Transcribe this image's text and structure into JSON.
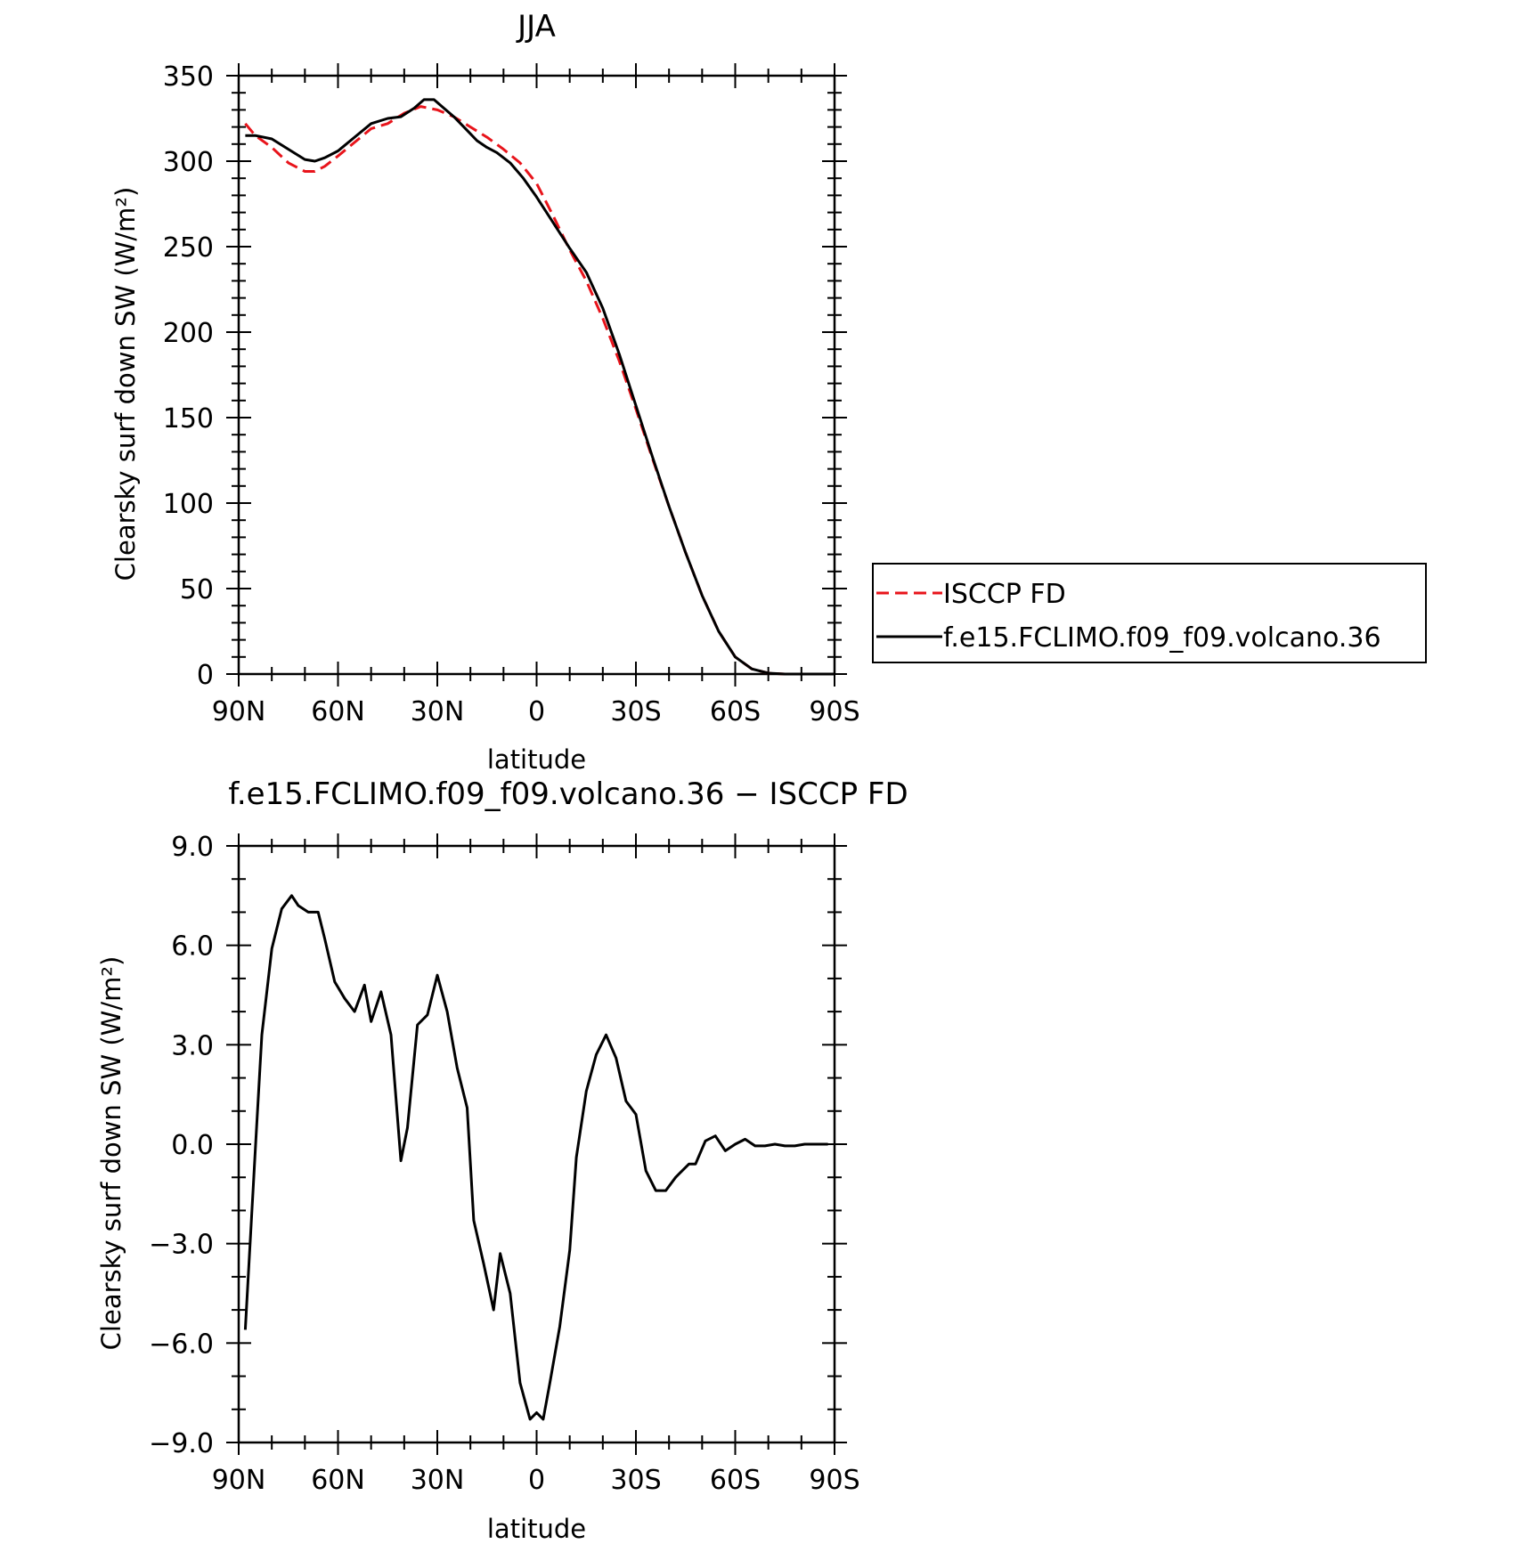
{
  "chart_data": [
    {
      "type": "line",
      "title": "JJA",
      "xlabel": "latitude",
      "ylabel": "Clearsky surf down SW (W/m²)",
      "xlim": [
        90,
        -90
      ],
      "ylim": [
        0,
        350
      ],
      "x_ticks": [
        90,
        60,
        30,
        0,
        -30,
        -60,
        -90
      ],
      "x_tick_labels": [
        "90N",
        "60N",
        "30N",
        "0",
        "30S",
        "60S",
        "90S"
      ],
      "y_ticks": [
        0,
        50,
        100,
        150,
        200,
        250,
        300,
        350
      ],
      "y_tick_labels": [
        "0",
        "50",
        "100",
        "150",
        "200",
        "250",
        "300",
        "350"
      ],
      "legend": {
        "position": "right",
        "entries": [
          "ISCCP FD",
          "f.e15.FCLIMO.f09_f09.volcano.36"
        ]
      },
      "series": [
        {
          "name": "ISCCP FD",
          "color": "#e8141b",
          "dash": "dashed",
          "x": [
            88,
            85,
            80,
            75,
            70,
            67,
            64,
            60,
            55,
            50,
            45,
            40,
            35,
            30,
            25,
            20,
            15,
            10,
            5,
            0,
            -5,
            -10,
            -15,
            -20,
            -25,
            -30,
            -35,
            -40,
            -45,
            -50,
            -55,
            -60,
            -65,
            -70,
            -75,
            -80,
            -85,
            -90
          ],
          "y": [
            322,
            315,
            308,
            299,
            294,
            294,
            297,
            303,
            311,
            319,
            322,
            328,
            332,
            330,
            326,
            320,
            314,
            307,
            299,
            287,
            268,
            248,
            230,
            208,
            183,
            155,
            126,
            98,
            71,
            46,
            25,
            10,
            3,
            0.5,
            0,
            0,
            0,
            0
          ]
        },
        {
          "name": "f.e15.FCLIMO.f09_f09.volcano.36",
          "color": "#000000",
          "dash": "solid",
          "x": [
            88,
            85,
            80,
            75,
            70,
            67,
            64,
            60,
            55,
            50,
            45,
            41,
            37,
            34,
            31,
            28,
            25,
            21,
            18,
            15,
            12,
            8,
            4,
            0,
            -5,
            -10,
            -15,
            -20,
            -25,
            -30,
            -35,
            -40,
            -45,
            -50,
            -55,
            -60,
            -65,
            -70,
            -75,
            -80,
            -85,
            -90
          ],
          "y": [
            315,
            315,
            313,
            307,
            301,
            300,
            302,
            306,
            314,
            322,
            325,
            326,
            331,
            336,
            336,
            331,
            326,
            318,
            312,
            308,
            305,
            299,
            290,
            279,
            264,
            249,
            235,
            214,
            187,
            157,
            127,
            98,
            71,
            46,
            25,
            10,
            3,
            0.5,
            0,
            0,
            0,
            0
          ]
        }
      ]
    },
    {
      "type": "line",
      "title": "f.e15.FCLIMO.f09_f09.volcano.36 − ISCCP FD",
      "xlabel": "latitude",
      "ylabel": "Clearsky surf down SW (W/m²)",
      "xlim": [
        90,
        -90
      ],
      "ylim": [
        -9,
        9
      ],
      "x_ticks": [
        90,
        60,
        30,
        0,
        -30,
        -60,
        -90
      ],
      "x_tick_labels": [
        "90N",
        "60N",
        "30N",
        "0",
        "30S",
        "60S",
        "90S"
      ],
      "y_ticks": [
        -9,
        -6,
        -3,
        0,
        3,
        6,
        9
      ],
      "y_tick_labels": [
        "−9.0",
        "−6.0",
        "−3.0",
        "0.0",
        "3.0",
        "6.0",
        "9.0"
      ],
      "series": [
        {
          "color": "#000000",
          "dash": "solid",
          "x": [
            88,
            85,
            83,
            80,
            77,
            74,
            72,
            69,
            66,
            64,
            61,
            58,
            55,
            52,
            50,
            47,
            44,
            41,
            39,
            36,
            33,
            30,
            27,
            24,
            21,
            19,
            16,
            13,
            11,
            8,
            5,
            2,
            0,
            -2,
            -4,
            -7,
            -10,
            -12,
            -15,
            -18,
            -21,
            -24,
            -27,
            -30,
            -33,
            -36,
            -39,
            -42,
            -46,
            -48,
            -51,
            -54,
            -57,
            -60,
            -63,
            -66,
            -69,
            -72,
            -75,
            -78,
            -81,
            -84,
            -87,
            -88
          ],
          "y": [
            -5.6,
            -0.2,
            3.3,
            5.9,
            7.1,
            7.5,
            7.2,
            7.0,
            7.0,
            6.2,
            4.9,
            4.4,
            4.0,
            4.8,
            3.7,
            4.6,
            3.3,
            -0.5,
            0.5,
            3.6,
            3.9,
            5.1,
            4.0,
            2.3,
            1.1,
            -2.3,
            -3.6,
            -5.0,
            -3.3,
            -4.5,
            -7.2,
            -8.3,
            -8.1,
            -8.3,
            -7.2,
            -5.5,
            -3.2,
            -0.4,
            1.6,
            2.7,
            3.3,
            2.6,
            1.3,
            0.9,
            -0.8,
            -1.4,
            -1.4,
            -1.0,
            -0.6,
            -0.6,
            0.1,
            0.25,
            -0.2,
            0.0,
            0.15,
            -0.05,
            -0.05,
            0.0,
            -0.05,
            -0.05,
            0.0,
            0.0,
            0.0,
            0.0
          ]
        }
      ]
    }
  ]
}
